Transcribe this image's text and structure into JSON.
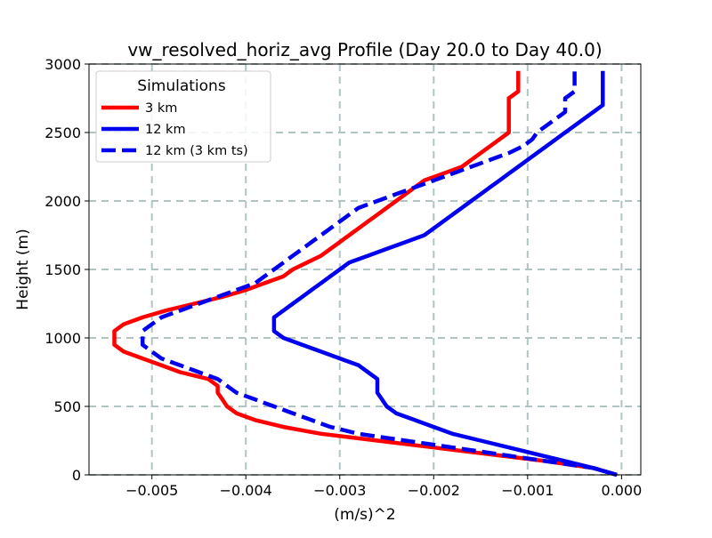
{
  "chart_data": {
    "type": "line",
    "title": "vw_resolved_horiz_avg Profile (Day 20.0 to Day 40.0)",
    "xlabel": "(m/s)^2",
    "ylabel": "Height (m)",
    "xlim": [
      -0.00567,
      0.000205
    ],
    "ylim": [
      0,
      3000
    ],
    "xticks": [
      -0.005,
      -0.004,
      -0.003,
      -0.002,
      -0.001,
      0.0
    ],
    "xtick_labels": [
      "−0.005",
      "−0.004",
      "−0.003",
      "−0.002",
      "−0.001",
      "0.000"
    ],
    "yticks": [
      0,
      500,
      1000,
      1500,
      2000,
      2500,
      3000
    ],
    "ytick_labels": [
      "0",
      "500",
      "1000",
      "1500",
      "2000",
      "2500",
      "3000"
    ],
    "grid": true,
    "legend": {
      "title": "Simulations",
      "placement": "top-left"
    },
    "series": [
      {
        "name": "3 km",
        "color": "#ff0000",
        "style": "solid",
        "points": [
          [
            -5e-05,
            0
          ],
          [
            -0.0003,
            50
          ],
          [
            -0.0008,
            100
          ],
          [
            -0.0014,
            150
          ],
          [
            -0.002,
            200
          ],
          [
            -0.0026,
            250
          ],
          [
            -0.0032,
            300
          ],
          [
            -0.0036,
            350
          ],
          [
            -0.0039,
            400
          ],
          [
            -0.0041,
            450
          ],
          [
            -0.0042,
            500
          ],
          [
            -0.00425,
            550
          ],
          [
            -0.0043,
            600
          ],
          [
            -0.0043,
            650
          ],
          [
            -0.0044,
            700
          ],
          [
            -0.0047,
            750
          ],
          [
            -0.0049,
            800
          ],
          [
            -0.0051,
            850
          ],
          [
            -0.0053,
            900
          ],
          [
            -0.0054,
            950
          ],
          [
            -0.0054,
            1000
          ],
          [
            -0.0054,
            1050
          ],
          [
            -0.0053,
            1100
          ],
          [
            -0.0051,
            1150
          ],
          [
            -0.00485,
            1200
          ],
          [
            -0.00455,
            1250
          ],
          [
            -0.00425,
            1300
          ],
          [
            -0.004,
            1350
          ],
          [
            -0.0038,
            1400
          ],
          [
            -0.0036,
            1450
          ],
          [
            -0.0035,
            1500
          ],
          [
            -0.00335,
            1550
          ],
          [
            -0.0032,
            1600
          ],
          [
            -0.0031,
            1650
          ],
          [
            -0.003,
            1700
          ],
          [
            -0.0029,
            1750
          ],
          [
            -0.0028,
            1800
          ],
          [
            -0.0027,
            1850
          ],
          [
            -0.0026,
            1900
          ],
          [
            -0.0025,
            1950
          ],
          [
            -0.0024,
            2000
          ],
          [
            -0.0023,
            2050
          ],
          [
            -0.0022,
            2100
          ],
          [
            -0.0021,
            2150
          ],
          [
            -0.0019,
            2200
          ],
          [
            -0.0017,
            2250
          ],
          [
            -0.0016,
            2300
          ],
          [
            -0.0015,
            2350
          ],
          [
            -0.0014,
            2400
          ],
          [
            -0.0013,
            2450
          ],
          [
            -0.0012,
            2500
          ],
          [
            -0.0012,
            2550
          ],
          [
            -0.0012,
            2600
          ],
          [
            -0.0012,
            2650
          ],
          [
            -0.0012,
            2700
          ],
          [
            -0.0012,
            2750
          ],
          [
            -0.0011,
            2800
          ],
          [
            -0.0011,
            2850
          ],
          [
            -0.0011,
            2900
          ],
          [
            -0.0011,
            2950
          ]
        ]
      },
      {
        "name": "12 km",
        "color": "#0000ee",
        "style": "solid",
        "points": [
          [
            -5e-05,
            0
          ],
          [
            -0.0003,
            50
          ],
          [
            -0.0006,
            100
          ],
          [
            -0.0009,
            150
          ],
          [
            -0.0012,
            200
          ],
          [
            -0.0015,
            250
          ],
          [
            -0.0018,
            300
          ],
          [
            -0.002,
            350
          ],
          [
            -0.0022,
            400
          ],
          [
            -0.0024,
            450
          ],
          [
            -0.0025,
            500
          ],
          [
            -0.00255,
            550
          ],
          [
            -0.0026,
            600
          ],
          [
            -0.0026,
            650
          ],
          [
            -0.0026,
            700
          ],
          [
            -0.0027,
            750
          ],
          [
            -0.0028,
            800
          ],
          [
            -0.003,
            850
          ],
          [
            -0.0032,
            900
          ],
          [
            -0.0034,
            950
          ],
          [
            -0.0036,
            1000
          ],
          [
            -0.0037,
            1050
          ],
          [
            -0.0037,
            1100
          ],
          [
            -0.0037,
            1150
          ],
          [
            -0.0036,
            1200
          ],
          [
            -0.0035,
            1250
          ],
          [
            -0.0034,
            1300
          ],
          [
            -0.0033,
            1350
          ],
          [
            -0.0032,
            1400
          ],
          [
            -0.0031,
            1450
          ],
          [
            -0.003,
            1500
          ],
          [
            -0.0029,
            1550
          ],
          [
            -0.0027,
            1600
          ],
          [
            -0.0025,
            1650
          ],
          [
            -0.0023,
            1700
          ],
          [
            -0.0021,
            1750
          ],
          [
            -0.002,
            1800
          ],
          [
            -0.0019,
            1850
          ],
          [
            -0.0018,
            1900
          ],
          [
            -0.0017,
            1950
          ],
          [
            -0.0016,
            2000
          ],
          [
            -0.0015,
            2050
          ],
          [
            -0.0014,
            2100
          ],
          [
            -0.0013,
            2150
          ],
          [
            -0.0012,
            2200
          ],
          [
            -0.0011,
            2250
          ],
          [
            -0.001,
            2300
          ],
          [
            -0.0009,
            2350
          ],
          [
            -0.0008,
            2400
          ],
          [
            -0.0007,
            2450
          ],
          [
            -0.0006,
            2500
          ],
          [
            -0.0005,
            2550
          ],
          [
            -0.0004,
            2600
          ],
          [
            -0.0003,
            2650
          ],
          [
            -0.0002,
            2700
          ],
          [
            -0.0002,
            2750
          ],
          [
            -0.0002,
            2800
          ],
          [
            -0.0002,
            2850
          ],
          [
            -0.0002,
            2900
          ],
          [
            -0.0002,
            2950
          ]
        ]
      },
      {
        "name": "12 km (3 km ts)",
        "color": "#0000ee",
        "style": "dashed",
        "points": [
          [
            -5e-05,
            0
          ],
          [
            -0.0003,
            50
          ],
          [
            -0.0008,
            100
          ],
          [
            -0.0013,
            150
          ],
          [
            -0.0018,
            200
          ],
          [
            -0.0023,
            250
          ],
          [
            -0.0028,
            300
          ],
          [
            -0.0031,
            350
          ],
          [
            -0.0033,
            400
          ],
          [
            -0.0035,
            450
          ],
          [
            -0.0037,
            500
          ],
          [
            -0.0039,
            550
          ],
          [
            -0.0041,
            600
          ],
          [
            -0.0042,
            650
          ],
          [
            -0.0043,
            700
          ],
          [
            -0.0045,
            750
          ],
          [
            -0.0047,
            800
          ],
          [
            -0.0049,
            850
          ],
          [
            -0.005,
            900
          ],
          [
            -0.0051,
            950
          ],
          [
            -0.0051,
            1000
          ],
          [
            -0.0051,
            1050
          ],
          [
            -0.005,
            1100
          ],
          [
            -0.0049,
            1150
          ],
          [
            -0.0047,
            1200
          ],
          [
            -0.0045,
            1250
          ],
          [
            -0.0043,
            1300
          ],
          [
            -0.0041,
            1350
          ],
          [
            -0.0039,
            1400
          ],
          [
            -0.0038,
            1450
          ],
          [
            -0.0037,
            1500
          ],
          [
            -0.0036,
            1550
          ],
          [
            -0.0035,
            1600
          ],
          [
            -0.0034,
            1650
          ],
          [
            -0.0033,
            1700
          ],
          [
            -0.0032,
            1750
          ],
          [
            -0.0031,
            1800
          ],
          [
            -0.003,
            1850
          ],
          [
            -0.0029,
            1900
          ],
          [
            -0.0028,
            1950
          ],
          [
            -0.0026,
            2000
          ],
          [
            -0.0024,
            2050
          ],
          [
            -0.0022,
            2100
          ],
          [
            -0.002,
            2150
          ],
          [
            -0.0018,
            2200
          ],
          [
            -0.0016,
            2250
          ],
          [
            -0.0014,
            2300
          ],
          [
            -0.0012,
            2350
          ],
          [
            -0.00105,
            2400
          ],
          [
            -0.00095,
            2450
          ],
          [
            -0.0009,
            2500
          ],
          [
            -0.0008,
            2550
          ],
          [
            -0.0007,
            2600
          ],
          [
            -0.0006,
            2650
          ],
          [
            -0.0006,
            2700
          ],
          [
            -0.0006,
            2750
          ],
          [
            -0.0005,
            2800
          ],
          [
            -0.0005,
            2850
          ],
          [
            -0.0005,
            2900
          ],
          [
            -0.0005,
            2950
          ]
        ]
      }
    ]
  }
}
